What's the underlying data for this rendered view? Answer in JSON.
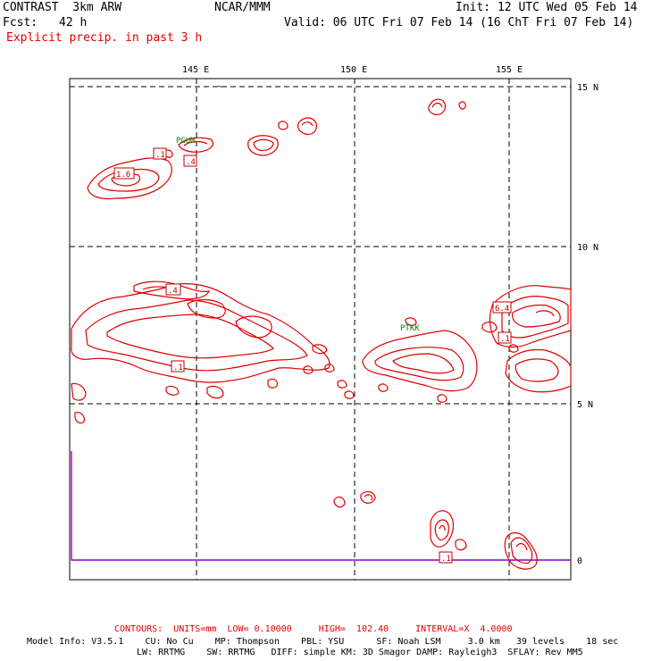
{
  "header": {
    "title_left": "CONTRAST  3km ARW",
    "center": "NCAR/MMM",
    "init": "Init: 12 UTC Wed 05 Feb 14",
    "fcst_label": "Fcst:",
    "fcst_value": "42 h",
    "valid": "Valid: 06 UTC Fri 07 Feb 14 (16 ChT Fri 07 Feb 14)",
    "field": "Explicit precip. in past 3 h"
  },
  "axes": {
    "lon_labels": [
      "145 E",
      "150 E",
      "155 E"
    ],
    "lat_labels": [
      "15 N",
      "10 N",
      "5 N",
      "0"
    ]
  },
  "stations": [
    "PGUM",
    "PTKK"
  ],
  "contour_labels": [
    ".1",
    "1.6",
    ".4",
    ".4",
    ".1",
    "6.4",
    ".1",
    ".1"
  ],
  "colors": {
    "precip": "#e00000",
    "terrain_line": "#cc00cc",
    "station": "#008000"
  },
  "footer": {
    "contours": "CONTOURS:  UNITS=mm  LOW= 0.10000     HIGH=  102.40     INTERVAL=X  4.0000",
    "model_line1": "Model Info: V3.5.1    CU: No Cu    MP: Thompson    PBL: YSU      SF: Noah LSM     3.0 km   39 levels    18 sec",
    "model_line2": "LW: RRTMG    SW: RRTMG   DIFF: simple KM: 3D Smagor DAMP: Rayleigh3  SFLAY: Rev MM5"
  }
}
